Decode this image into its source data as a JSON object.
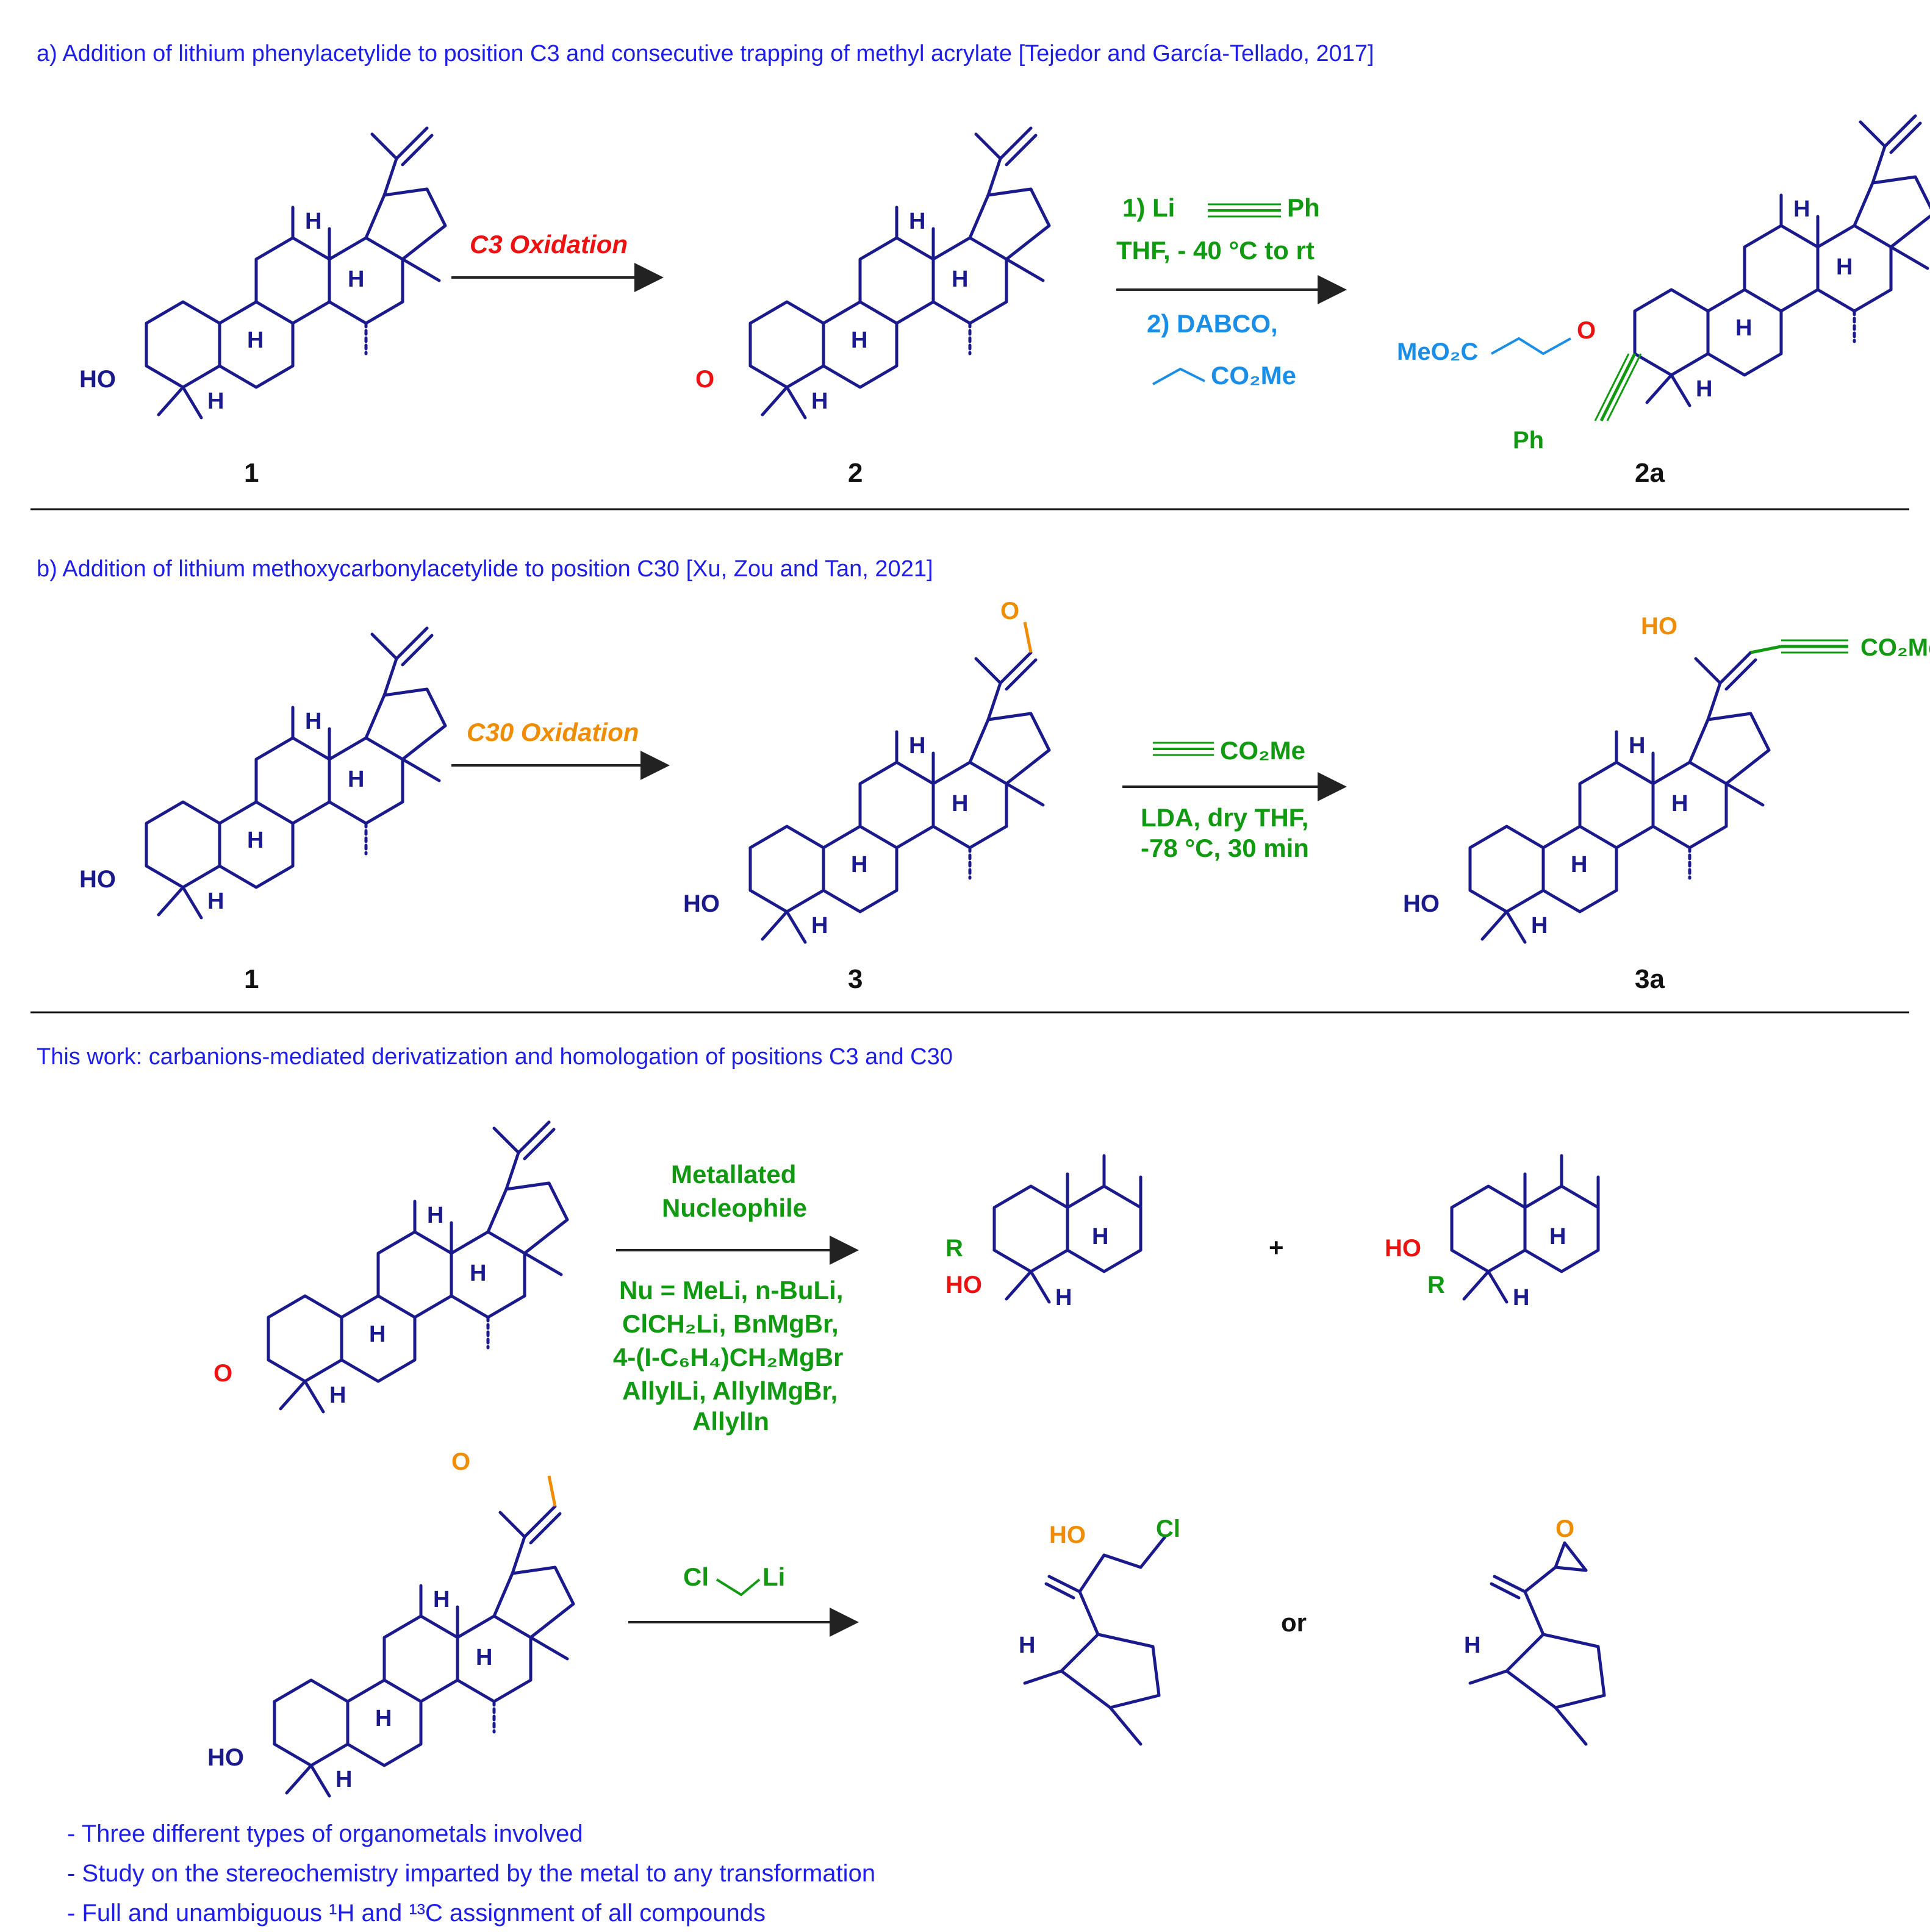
{
  "sections": {
    "a": {
      "heading": "a) Addition of lithium phenylacetylide to position C3 and consecutive trapping of methyl acrylate [Tejedor  and García-Tellado, 2017]",
      "arrow1_label": "C3 Oxidation",
      "arrow2_line1": "1)  Li",
      "arrow2_line1_end": "Ph",
      "arrow2_line2": "THF,  - 40 °C to rt",
      "arrow2_line3": "2) DABCO,",
      "arrow2_line4": "CO₂Me",
      "labels": [
        "1",
        "2",
        "2a"
      ]
    },
    "b": {
      "heading": "b) Addition of lithium methoxycarbonylacetylide to position C30 [Xu, Zou and Tan,  2021]",
      "arrow1_label": "C30 Oxidation",
      "arrow2_line1": "CO₂Me",
      "arrow2_line2": "LDA, dry THF,",
      "arrow2_line3": "-78 °C, 30 min",
      "labels": [
        "1",
        "3",
        "3a"
      ]
    },
    "c": {
      "heading": "This work: carbanions-mediated derivatization and homologation of positions C3 and C30",
      "arrow1_line1": "Metallated",
      "arrow1_line2": "Nucleophile",
      "nu_line1": "Nu = MeLi, n-BuLi,",
      "nu_line2": "ClCH₂Li, BnMgBr,",
      "nu_line3": "4-(I-C₆H₄)CH₂MgBr",
      "nu_line4": "AllylLi, AllylMgBr,",
      "nu_line5": "AllylIn",
      "plus": "+",
      "arrow2_cl": "Cl",
      "arrow2_li": "Li",
      "or": "or"
    }
  },
  "atoms": {
    "HO": "HO",
    "O": "O",
    "H": "H",
    "R": "R",
    "MeO2C": "MeO₂C",
    "Ph": "Ph",
    "CO2Me": "CO₂Me",
    "Cl": "Cl"
  },
  "bullets": [
    "- Three different types of organometals involved",
    "- Study on the stereochemistry imparted by the metal to any transformation",
    "- Full and unambiguous ¹H and ¹³C assignment of all compounds"
  ],
  "colors": {
    "heading": "#1e1ee6",
    "skeleton": "#1a1a8c",
    "oxidation_c3": "#ee1111",
    "oxidation_c30": "#f08c00",
    "reagent": "#119911",
    "acrylate": "#1a8ee6"
  }
}
